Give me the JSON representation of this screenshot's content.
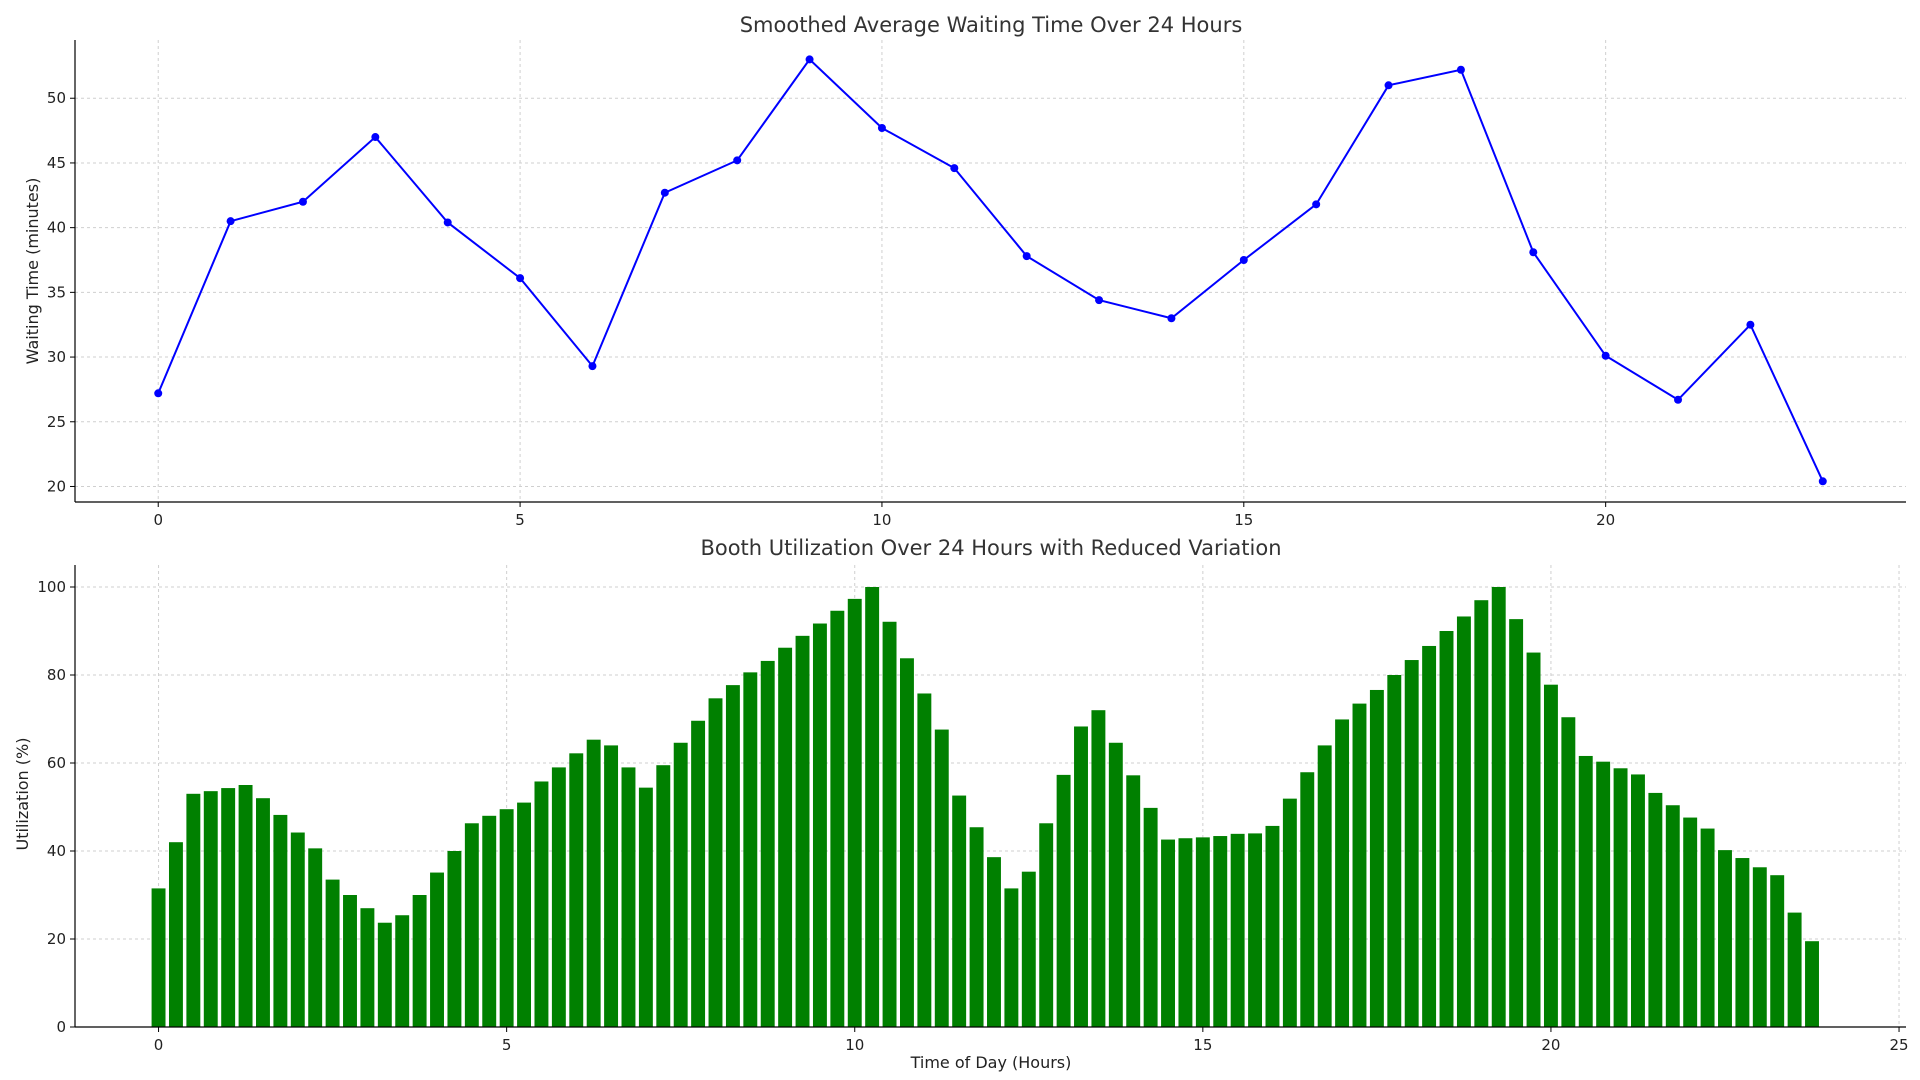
{
  "chart_data": [
    {
      "type": "line",
      "title": "Smoothed Average Waiting Time Over 24 Hours",
      "xlabel": "",
      "ylabel": "Waiting Time (minutes)",
      "color": "#0000ff",
      "xlim": [
        -1.15,
        24.15
      ],
      "ylim": [
        18.8,
        54.5
      ],
      "xticks": [
        0,
        5,
        10,
        15,
        20
      ],
      "yticks": [
        20,
        25,
        30,
        35,
        40,
        45,
        50
      ],
      "grid": true,
      "x": [
        0,
        1,
        2,
        3,
        4,
        5,
        6,
        7,
        8,
        9,
        10,
        11,
        12,
        13,
        14,
        15,
        16,
        17,
        18,
        19,
        20,
        21,
        22,
        23
      ],
      "y": [
        27.2,
        40.5,
        42.0,
        47.0,
        40.4,
        36.1,
        29.3,
        42.7,
        45.2,
        53.0,
        47.7,
        44.6,
        37.8,
        34.4,
        33.0,
        37.5,
        41.8,
        51.0,
        52.2,
        38.1,
        30.1,
        26.7,
        32.5,
        20.4
      ]
    },
    {
      "type": "bar",
      "title": "Booth Utilization Over 24 Hours with Reduced Variation",
      "xlabel": "Time of Day (Hours)",
      "ylabel": "Utilization (%)",
      "color": "#008000",
      "xlim": [
        -1.2,
        25.1
      ],
      "ylim": [
        0,
        105
      ],
      "xticks": [
        0,
        5,
        10,
        15,
        20,
        25
      ],
      "yticks": [
        0,
        20,
        40,
        60,
        80,
        100
      ],
      "grid": true,
      "bar_width": 0.2,
      "x": [
        0,
        0.25,
        0.5,
        0.75,
        1,
        1.25,
        1.5,
        1.75,
        2,
        2.25,
        2.5,
        2.75,
        3,
        3.25,
        3.5,
        3.75,
        4,
        4.25,
        4.5,
        4.75,
        5,
        5.25,
        5.5,
        5.75,
        6,
        6.25,
        6.5,
        6.75,
        7,
        7.25,
        7.5,
        7.75,
        8,
        8.25,
        8.5,
        8.75,
        9,
        9.25,
        9.5,
        9.75,
        10,
        10.25,
        10.5,
        10.75,
        11,
        11.25,
        11.5,
        11.75,
        12,
        12.25,
        12.5,
        12.75,
        13,
        13.25,
        13.5,
        13.75,
        14,
        14.25,
        14.5,
        14.75,
        15,
        15.25,
        15.5,
        15.75,
        16,
        16.25,
        16.5,
        16.75,
        17,
        17.25,
        17.5,
        17.75,
        18,
        18.25,
        18.5,
        18.75,
        19,
        19.25,
        19.5,
        19.75,
        20,
        20.25,
        20.5,
        20.75,
        21,
        21.25,
        21.5,
        21.75,
        22,
        22.25,
        22.5,
        22.75,
        23,
        23.25,
        23.5,
        23.75
      ],
      "values": [
        31.5,
        42.0,
        53.0,
        53.6,
        54.3,
        55.0,
        52.0,
        48.2,
        44.2,
        40.6,
        33.5,
        30.0,
        27.0,
        23.7,
        25.4,
        30.0,
        35.1,
        40.0,
        46.3,
        48.0,
        49.5,
        51.0,
        55.8,
        59.0,
        62.2,
        65.3,
        64.0,
        59.0,
        54.4,
        59.5,
        64.6,
        69.6,
        74.7,
        77.7,
        80.6,
        83.2,
        86.2,
        88.9,
        91.7,
        94.6,
        97.3,
        100.0,
        92.1,
        83.8,
        75.8,
        67.6,
        52.6,
        45.4,
        38.6,
        31.5,
        35.3,
        46.3,
        57.3,
        68.3,
        72.0,
        64.6,
        57.2,
        49.8,
        42.6,
        42.9,
        43.1,
        43.4,
        43.9,
        44.0,
        45.7,
        51.9,
        57.9,
        64.0,
        69.9,
        73.5,
        76.6,
        80.0,
        83.4,
        86.6,
        90.0,
        93.3,
        97.0,
        100.0,
        92.7,
        85.1,
        77.8,
        70.4,
        61.6,
        60.3,
        58.8,
        57.4,
        53.2,
        50.4,
        47.6,
        45.1,
        40.2,
        38.4,
        36.3,
        34.5,
        26.0,
        19.5
      ]
    }
  ]
}
